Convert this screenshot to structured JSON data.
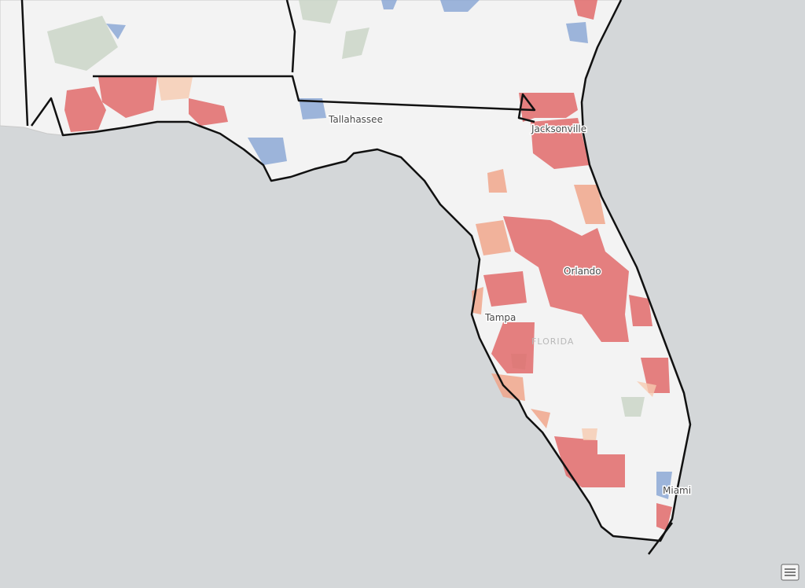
{
  "map": {
    "labels": [
      "Tallahassee",
      "Jacksonville",
      "Orlando",
      "Tampa",
      "FLORIDA",
      "Miami"
    ]
  }
}
